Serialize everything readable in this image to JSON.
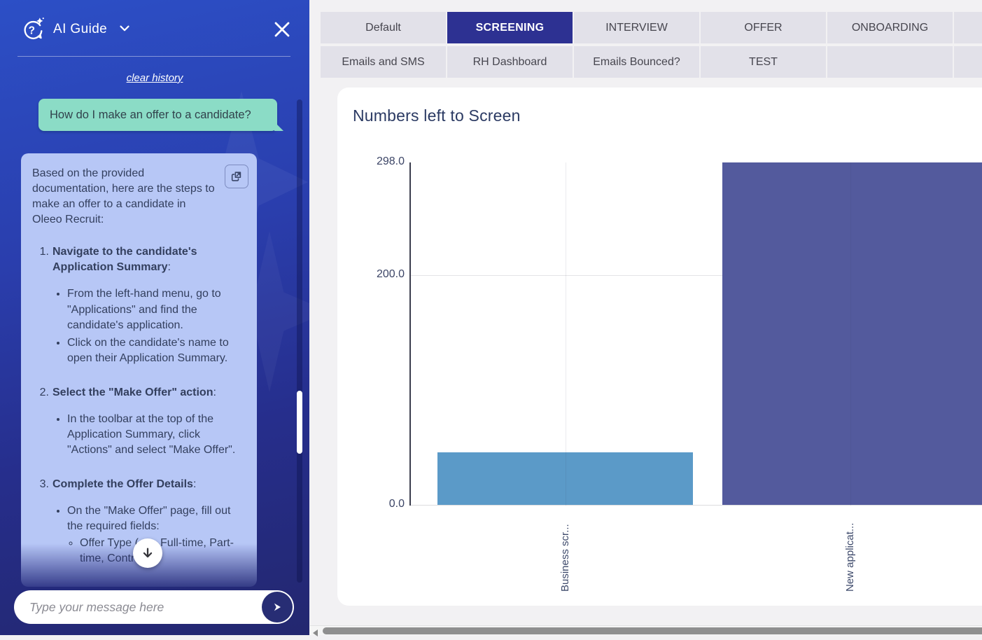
{
  "chat": {
    "title": "AI Guide",
    "clear_history_label": "clear history",
    "user_message": "How do I make an offer to a candidate?",
    "ai_message": {
      "intro": "Based on the provided documentation, here are the steps to make an offer to a candidate in Oleeo Recruit:",
      "steps": [
        {
          "num": "1.",
          "title": "Navigate to the candidate's Application Summary",
          "bullets": [
            {
              "text": "From the left-hand menu, go to \"Applications\" and find the candidate's application."
            },
            {
              "text": "Click on the candidate's name to open their Application Summary."
            }
          ]
        },
        {
          "num": "2.",
          "title": "Select the \"Make Offer\" action",
          "bullets": [
            {
              "text": "In the toolbar at the top of the Application Summary, click \"Actions\" and select \"Make Offer\"."
            }
          ]
        },
        {
          "num": "3.",
          "title": "Complete the Offer Details",
          "bullets": [
            {
              "text": "On the \"Make Offer\" page, fill out the required fields:",
              "sub": [
                "Offer Type (e.g. Full-time, Part-time, Contract)"
              ]
            }
          ]
        }
      ]
    },
    "input_placeholder": "Type your message here",
    "colors": {
      "panel_top": "#2c4fc6",
      "panel_bottom": "#23276f",
      "user_bubble": "#8bdcc6",
      "ai_bubble": "#b7c7f6"
    }
  },
  "tabs": {
    "rows": [
      [
        {
          "label": "Default",
          "active": false
        },
        {
          "label": "SCREENING",
          "active": true
        },
        {
          "label": "INTERVIEW",
          "active": false
        },
        {
          "label": "OFFER",
          "active": false
        },
        {
          "label": "ONBOARDING",
          "active": false
        }
      ],
      [
        {
          "label": "Emails and SMS",
          "active": false
        },
        {
          "label": "RH Dashboard",
          "active": false
        },
        {
          "label": "Emails Bounced?",
          "active": false
        },
        {
          "label": "TEST",
          "active": false
        },
        {
          "label": "",
          "active": false
        }
      ]
    ],
    "active_color": "#2d3192",
    "inactive_color": "#e2e1e9"
  },
  "chart_data": {
    "type": "bar",
    "title": "Numbers left to Screen",
    "categories": [
      "Business scr...",
      "New applicat..."
    ],
    "values": [
      46,
      298
    ],
    "bar_colors": [
      "#5b9ac8",
      "#535a9d"
    ],
    "ylim": [
      0,
      298
    ],
    "yticks": [
      0,
      200,
      298
    ],
    "ytick_labels": [
      "0.0",
      "200.0",
      "298.0"
    ],
    "xlabel": "",
    "ylabel": "",
    "grid": "horizontal gridline at 200, vertical gridlines at category centers",
    "legend": "none"
  }
}
